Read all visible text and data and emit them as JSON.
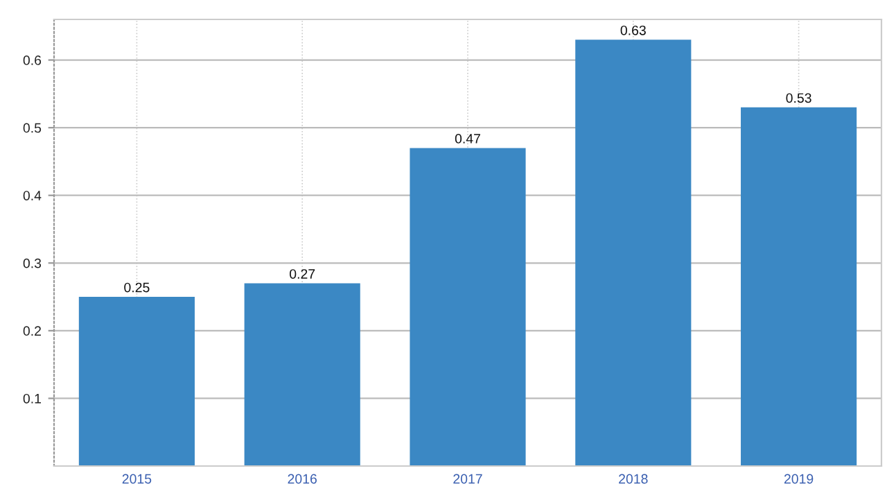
{
  "chart_data": {
    "type": "bar",
    "categories": [
      "2015",
      "2016",
      "2017",
      "2018",
      "2019"
    ],
    "values": [
      0.25,
      0.27,
      0.47,
      0.63,
      0.53
    ],
    "color": "#3b88c4",
    "ylim": [
      0,
      0.66
    ],
    "yticks": [
      0.1,
      0.2,
      0.3,
      0.4,
      0.5,
      0.6
    ],
    "grid": true,
    "data_labels": true
  }
}
